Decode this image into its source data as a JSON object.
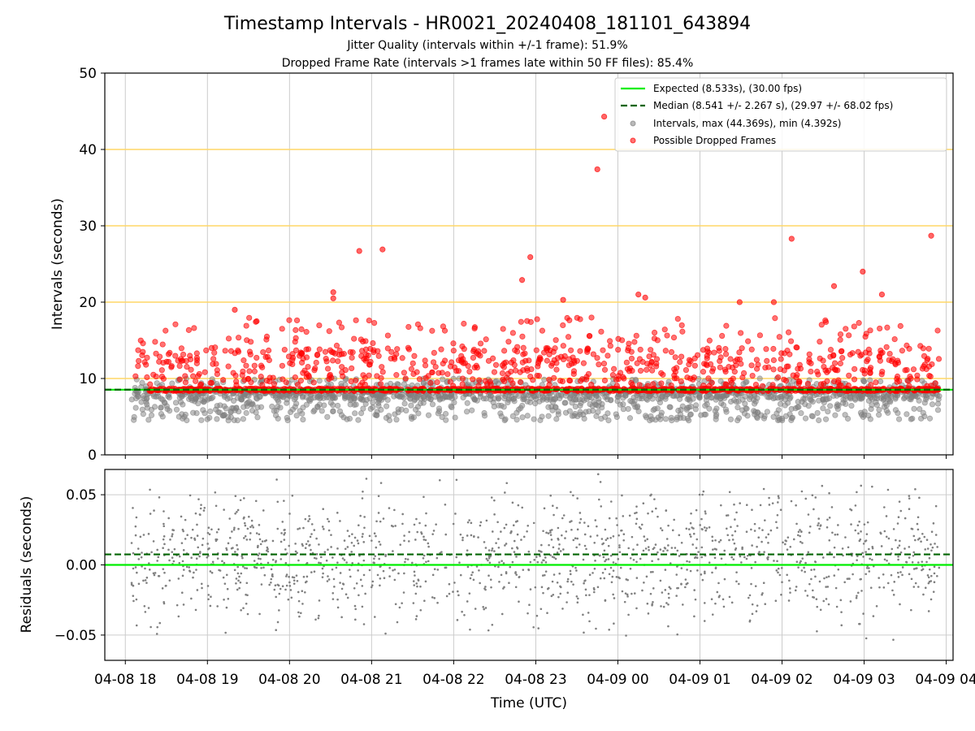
{
  "figure": {
    "title": "Timestamp Intervals - HR0021_20240408_181101_643894",
    "subtitle_1": "Jitter Quality (intervals within +/-1 frame): 51.9%",
    "subtitle_2": "Dropped Frame Rate (intervals >1 frames late within 50 FF files): 85.4%",
    "xlabel": "Time (UTC)"
  },
  "colors": {
    "expected": "#00ee00",
    "median": "#006400",
    "intervals": "#808080",
    "dropped": "#ff0000",
    "threshold_lines": "#ffd766",
    "grid": "#cccccc"
  },
  "chart_data": [
    {
      "type": "scatter",
      "panel": "intervals",
      "ylabel": "Intervals (seconds)",
      "ylim": [
        0,
        50
      ],
      "yticks": [
        0,
        10,
        20,
        30,
        40,
        50
      ],
      "x_range": [
        "2024-04-08 17:45",
        "2024-04-09 04:05"
      ],
      "grid": "vertical",
      "legend_position": "top-right",
      "expected_interval_s": 8.533,
      "median_interval_s": 8.541,
      "threshold_lines_s": [
        10,
        20,
        30,
        40
      ],
      "max_interval_s": 44.369,
      "min_interval_s": 4.392,
      "legend": [
        "Expected (8.533s), (30.00 fps)",
        "Median (8.541 +/- 2.267 s), (29.97 +/- 68.02 fps)",
        "Intervals, max (44.369s), min (4.392s)",
        "Possible Dropped Frames"
      ],
      "series": [
        {
          "name": "Possible Dropped Frames",
          "notable_points": [
            {
              "x": "2024-04-08 19:20",
              "y": 19.0
            },
            {
              "x": "2024-04-08 19:36",
              "y": 17.5
            },
            {
              "x": "2024-04-08 20:32",
              "y": 21.3
            },
            {
              "x": "2024-04-08 20:32",
              "y": 20.5
            },
            {
              "x": "2024-04-08 20:51",
              "y": 26.7
            },
            {
              "x": "2024-04-08 21:08",
              "y": 26.9
            },
            {
              "x": "2024-04-08 22:50",
              "y": 22.9
            },
            {
              "x": "2024-04-08 22:56",
              "y": 25.9
            },
            {
              "x": "2024-04-08 23:20",
              "y": 20.3
            },
            {
              "x": "2024-04-08 23:45",
              "y": 37.4
            },
            {
              "x": "2024-04-08 23:50",
              "y": 44.3
            },
            {
              "x": "2024-04-09 00:15",
              "y": 21.0
            },
            {
              "x": "2024-04-09 00:20",
              "y": 20.6
            },
            {
              "x": "2024-04-09 01:29",
              "y": 20.0
            },
            {
              "x": "2024-04-09 01:54",
              "y": 20.0
            },
            {
              "x": "2024-04-09 02:07",
              "y": 28.3
            },
            {
              "x": "2024-04-09 02:38",
              "y": 22.1
            },
            {
              "x": "2024-04-09 02:59",
              "y": 24.0
            },
            {
              "x": "2024-04-09 03:13",
              "y": 21.0
            },
            {
              "x": "2024-04-09 03:49",
              "y": 28.7
            }
          ],
          "note": "Approx. 1200 further points spread between 8.5 s and 18 s over 2024-04-08 18:04 to 2024-04-09 03:55, plus a dense band near 8.5 s"
        },
        {
          "name": "Intervals",
          "note": "Dense band between 4.4 s and 10 s over 2024-04-08 18:04 to 2024-04-09 03:55"
        }
      ]
    },
    {
      "type": "scatter",
      "panel": "residuals",
      "ylabel": "Residuals (seconds)",
      "ylim": [
        -0.068,
        0.068
      ],
      "yticks": [
        -0.05,
        0.0,
        0.05
      ],
      "ytick_labels": [
        "−0.05",
        "0.00",
        "0.05"
      ],
      "expected_residual_s": 0.0,
      "median_residual_s": 0.0075,
      "grid": "both",
      "note": "Approx. 1500 points scattered between -0.068 and 0.068 s over 2024-04-08 18:04 to 2024-04-09 03:55"
    }
  ],
  "x_axis": {
    "ticks": [
      {
        "time": "2024-04-08 18:00",
        "line1": "04-08",
        "line2": "18"
      },
      {
        "time": "2024-04-08 19:00",
        "line1": "04-08",
        "line2": "19"
      },
      {
        "time": "2024-04-08 20:00",
        "line1": "04-08",
        "line2": "20"
      },
      {
        "time": "2024-04-08 21:00",
        "line1": "04-08",
        "line2": "21"
      },
      {
        "time": "2024-04-08 22:00",
        "line1": "04-08",
        "line2": "22"
      },
      {
        "time": "2024-04-08 23:00",
        "line1": "04-08",
        "line2": "23"
      },
      {
        "time": "2024-04-09 00:00",
        "line1": "04-09",
        "line2": "00"
      },
      {
        "time": "2024-04-09 01:00",
        "line1": "04-09",
        "line2": "01"
      },
      {
        "time": "2024-04-09 02:00",
        "line1": "04-09",
        "line2": "02"
      },
      {
        "time": "2024-04-09 03:00",
        "line1": "04-09",
        "line2": "03"
      },
      {
        "time": "2024-04-09 04:00",
        "line1": "04-09",
        "line2": "04"
      }
    ]
  }
}
